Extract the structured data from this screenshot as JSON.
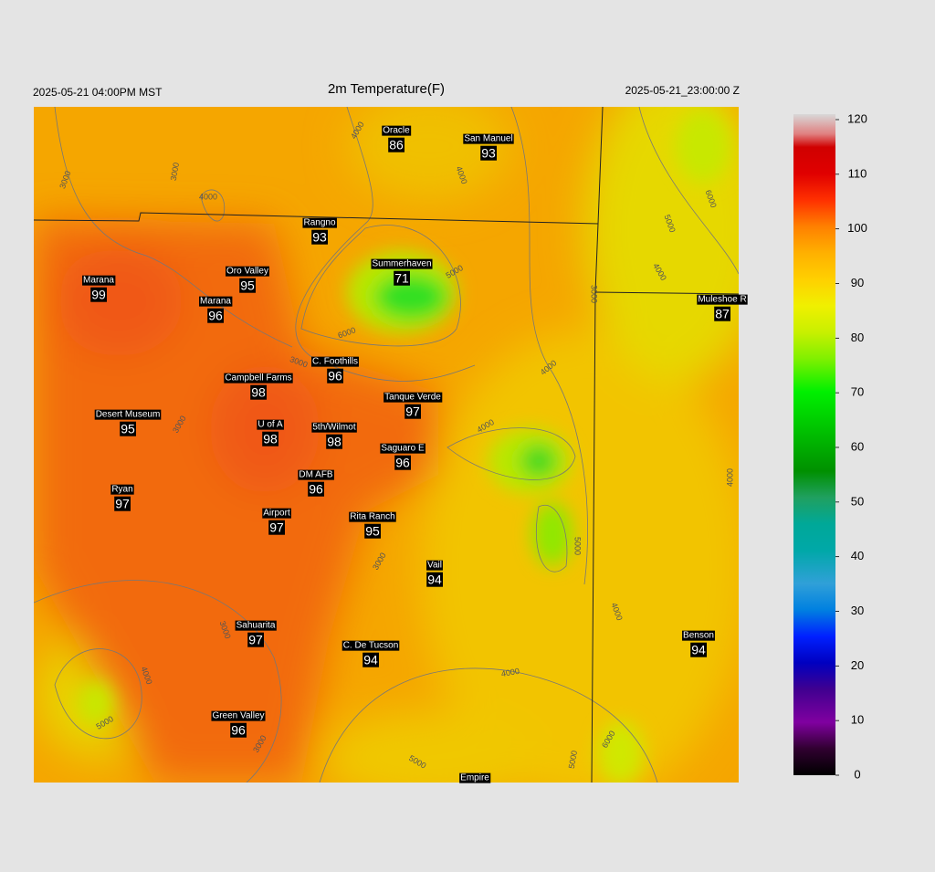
{
  "header": {
    "left": "2025-05-21 04:00PM MST",
    "title": "2m Temperature(F)",
    "right": "2025-05-21_23:00:00 Z"
  },
  "stations": [
    {
      "name": "Oracle",
      "value": "86"
    },
    {
      "name": "San Manuel",
      "value": "93"
    },
    {
      "name": "Rangno",
      "value": "93"
    },
    {
      "name": "Marana",
      "value": "99"
    },
    {
      "name": "Oro Valley",
      "value": "95"
    },
    {
      "name": "Summerhaven",
      "value": "71"
    },
    {
      "name": "Marana",
      "value": "96"
    },
    {
      "name": "Muleshoe R",
      "value": "87"
    },
    {
      "name": "C. Foothills",
      "value": "96"
    },
    {
      "name": "Campbell Farms",
      "value": "98"
    },
    {
      "name": "Tanque Verde",
      "value": "97"
    },
    {
      "name": "Desert Museum",
      "value": "95"
    },
    {
      "name": "U of A",
      "value": "98"
    },
    {
      "name": "5th/Wilmot",
      "value": "98"
    },
    {
      "name": "Saguaro E",
      "value": "96"
    },
    {
      "name": "DM AFB",
      "value": "96"
    },
    {
      "name": "Ryan",
      "value": "97"
    },
    {
      "name": "Airport",
      "value": "97"
    },
    {
      "name": "Rita Ranch",
      "value": "95"
    },
    {
      "name": "Vail",
      "value": "94"
    },
    {
      "name": "Sahuarita",
      "value": "97"
    },
    {
      "name": "C. De Tucson",
      "value": "94"
    },
    {
      "name": "Benson",
      "value": "94"
    },
    {
      "name": "Green Valley",
      "value": "96"
    },
    {
      "name": "Empire"
    }
  ],
  "contour_labels": [
    "3000",
    "3000",
    "4000",
    "4000",
    "4000",
    "5000",
    "6000",
    "3000",
    "3000",
    "4000",
    "4000",
    "3000",
    "5000",
    "5000",
    "4000",
    "6000",
    "4000",
    "3000",
    "3000",
    "4000",
    "5000",
    "4000",
    "4000",
    "3000",
    "5000",
    "5000",
    "6000"
  ],
  "colorbar": {
    "lim": [
      0,
      121
    ],
    "ticks": [
      0,
      10,
      20,
      30,
      40,
      50,
      60,
      70,
      80,
      90,
      100,
      110,
      120
    ]
  }
}
